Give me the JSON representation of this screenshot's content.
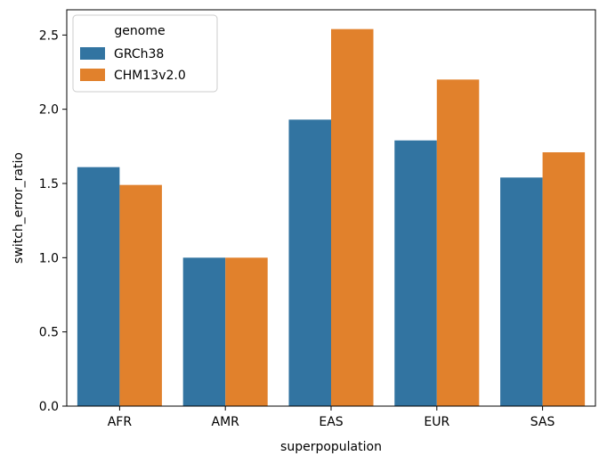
{
  "chart_data": {
    "type": "bar",
    "title": "",
    "xlabel": "superpopulation",
    "ylabel": "switch_error_ratio",
    "categories": [
      "AFR",
      "AMR",
      "EAS",
      "EUR",
      "SAS"
    ],
    "series": [
      {
        "name": "GRCh38",
        "color": "#3274a1",
        "values": [
          1.61,
          1.0,
          1.93,
          1.79,
          1.54
        ]
      },
      {
        "name": "CHM13v2.0",
        "color": "#e1812c",
        "values": [
          1.49,
          1.0,
          2.54,
          2.2,
          1.71
        ]
      }
    ],
    "ylim": [
      0,
      2.67
    ],
    "yticks": [
      "0.0",
      "0.5",
      "1.0",
      "1.5",
      "2.0",
      "2.5"
    ],
    "legend": {
      "title": "genome",
      "placement": "top-left"
    },
    "grid": false
  }
}
